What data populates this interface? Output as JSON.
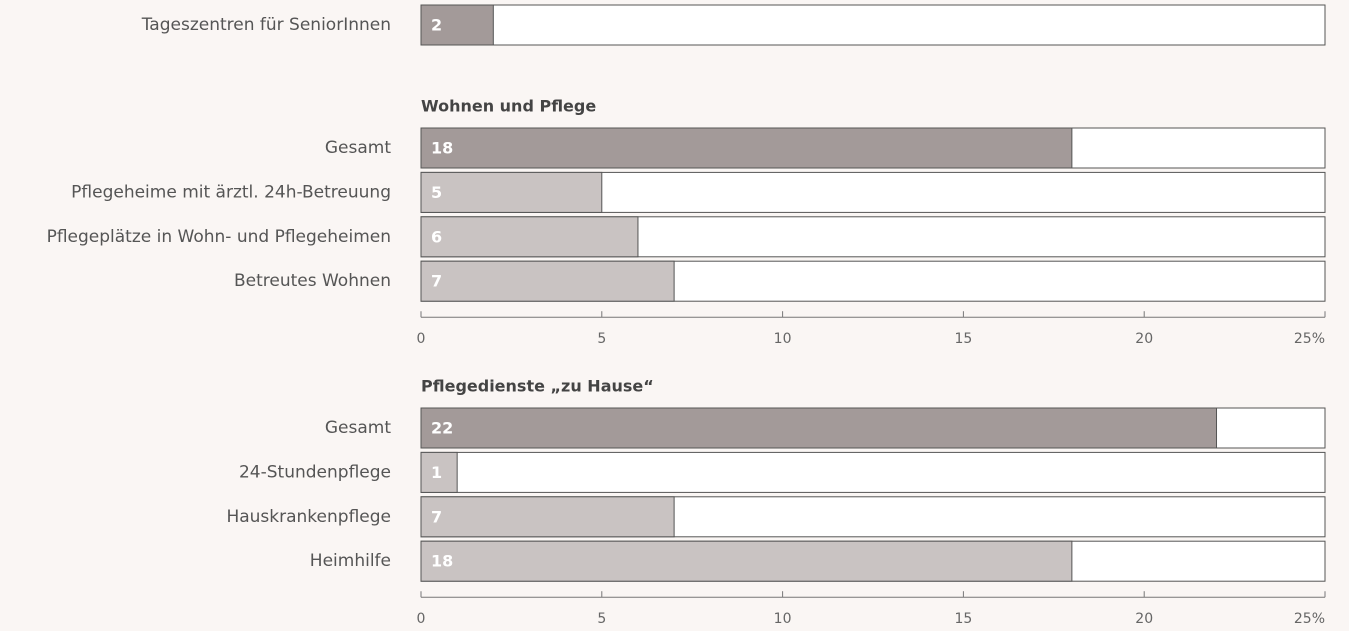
{
  "chart_data": [
    {
      "type": "bar",
      "categories": [
        "Tageszentren für SeniorInnen"
      ],
      "values": [
        2
      ],
      "colors": [
        "#a39a99"
      ],
      "xlim": [
        0,
        25
      ]
    },
    {
      "type": "bar",
      "title": "Wohnen und Pflege",
      "categories": [
        "Gesamt",
        "Pflegeheime mit ärztl. 24h-Betreuung",
        "Pflegeplätze in Wohn- und Pflegeheimen",
        "Betreutes Wohnen"
      ],
      "values": [
        18,
        5,
        6,
        7
      ],
      "colors": [
        "#a39a99",
        "#c9c3c2",
        "#c9c3c2",
        "#c9c3c2"
      ],
      "xlim": [
        0,
        25
      ],
      "xticks": [
        0,
        5,
        10,
        15,
        20,
        {
          "value": 25,
          "label": "25%"
        }
      ]
    },
    {
      "type": "bar",
      "title": "Pflegedienste „zu Hause“",
      "categories": [
        "Gesamt",
        "24-Stundenpflege",
        "Hauskrankenpflege",
        "Heimhilfe"
      ],
      "values": [
        22,
        1,
        7,
        18
      ],
      "colors": [
        "#a39a99",
        "#c9c3c2",
        "#c9c3c2",
        "#c9c3c2"
      ],
      "xlim": [
        0,
        25
      ],
      "xticks": [
        0,
        5,
        10,
        15,
        20,
        {
          "value": 25,
          "label": "25%"
        }
      ]
    }
  ]
}
